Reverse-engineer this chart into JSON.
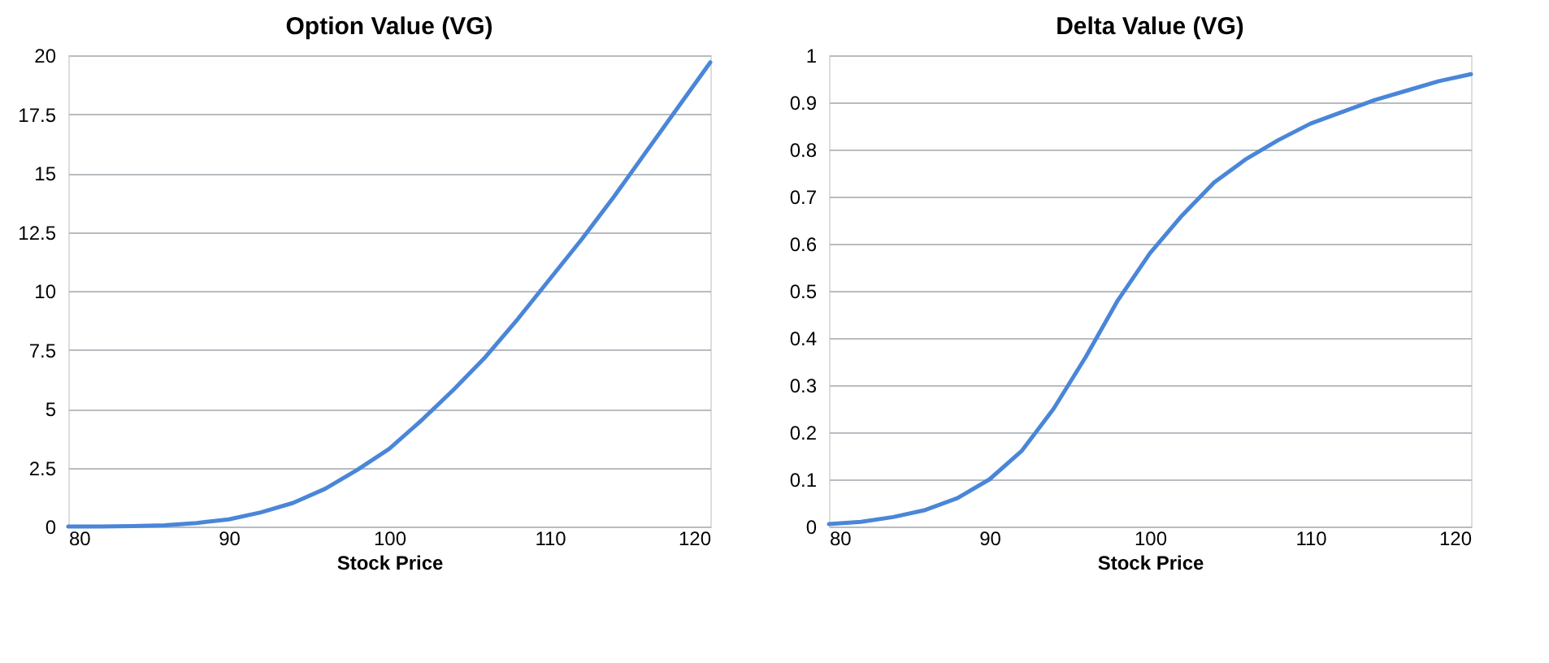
{
  "chart_data": [
    {
      "type": "line",
      "title": "Option Value (VG)",
      "xlabel": "Stock Price",
      "x": [
        80,
        82,
        84,
        86,
        88,
        90,
        92,
        94,
        96,
        98,
        100,
        102,
        104,
        106,
        108,
        110,
        112,
        114,
        116,
        118,
        120
      ],
      "series": [
        {
          "color": "#4a86d8",
          "values": [
            0,
            0,
            0.02,
            0.05,
            0.15,
            0.3,
            0.6,
            1.0,
            1.6,
            2.4,
            3.3,
            4.5,
            5.8,
            7.2,
            8.8,
            10.5,
            12.2,
            14.0,
            15.9,
            17.8,
            19.7
          ]
        }
      ],
      "xlim": [
        80,
        120
      ],
      "xticks": [
        80,
        90,
        100,
        110,
        120
      ],
      "ylim": [
        0,
        20
      ],
      "yticks": [
        0,
        2.5,
        5,
        7.5,
        10,
        12.5,
        15,
        17.5,
        20
      ],
      "grid": "y",
      "marker": "none",
      "line_style": "solid"
    },
    {
      "type": "line",
      "title": "Delta Value (VG)",
      "xlabel": "Stock Price",
      "x": [
        80,
        82,
        84,
        86,
        88,
        90,
        92,
        94,
        96,
        98,
        100,
        102,
        104,
        106,
        108,
        110,
        112,
        114,
        116,
        118,
        120
      ],
      "series": [
        {
          "color": "#4a86d8",
          "values": [
            0.005,
            0.01,
            0.02,
            0.035,
            0.06,
            0.1,
            0.16,
            0.25,
            0.36,
            0.48,
            0.58,
            0.66,
            0.73,
            0.78,
            0.82,
            0.855,
            0.88,
            0.905,
            0.925,
            0.945,
            0.96
          ]
        }
      ],
      "xlim": [
        80,
        120
      ],
      "xticks": [
        80,
        90,
        100,
        110,
        120
      ],
      "ylim": [
        0,
        1
      ],
      "yticks": [
        0,
        0.1,
        0.2,
        0.3,
        0.4,
        0.5,
        0.6,
        0.7,
        0.8,
        0.9,
        1
      ],
      "grid": "y",
      "marker": "none",
      "line_style": "solid"
    }
  ]
}
